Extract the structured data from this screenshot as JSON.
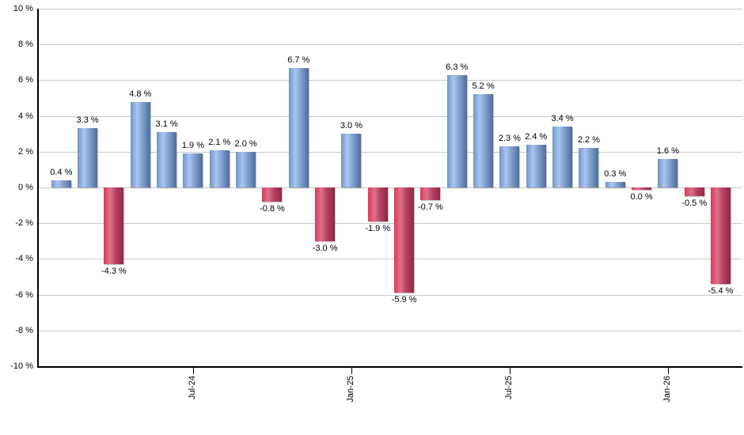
{
  "chart_data": {
    "type": "bar",
    "title": "",
    "xlabel": "",
    "ylabel": "",
    "unit": "%",
    "ylim": [
      -10,
      10
    ],
    "grid": true,
    "values": [
      0.4,
      3.3,
      -4.3,
      4.8,
      3.1,
      1.9,
      2.1,
      2.0,
      -0.8,
      6.7,
      -3.0,
      3.0,
      -1.9,
      -5.9,
      -0.7,
      6.3,
      5.2,
      2.3,
      2.4,
      3.4,
      2.2,
      0.3,
      0.0,
      1.6,
      -0.5,
      -5.4
    ],
    "bar_labels": [
      "0.4 %",
      "3.3 %",
      "-4.3 %",
      "4.8 %",
      "3.1 %",
      "1.9 %",
      "2.1 %",
      "2.0 %",
      "-0.8 %",
      "6.7 %",
      "-3.0 %",
      "3.0 %",
      "-1.9 %",
      "-5.9 %",
      "-0.7 %",
      "6.3 %",
      "5.2 %",
      "2.3 %",
      "2.4 %",
      "3.4 %",
      "2.2 %",
      "0.3 %",
      "0.0 %",
      "1.6 %",
      "-0.5 %",
      "-5.4 %"
    ],
    "x_ticks": [
      {
        "label": "Jul-24",
        "index": 5
      },
      {
        "label": "Jan-25",
        "index": 11
      },
      {
        "label": "Jul-25",
        "index": 17
      },
      {
        "label": "Jan-26",
        "index": 23
      }
    ],
    "y_ticks": [
      {
        "label": "10 %",
        "value": 10
      },
      {
        "label": "8 %",
        "value": 8
      },
      {
        "label": "6 %",
        "value": 6
      },
      {
        "label": "4 %",
        "value": 4
      },
      {
        "label": "2 %",
        "value": 2
      },
      {
        "label": "0 %",
        "value": 0
      },
      {
        "label": "-2 %",
        "value": -2
      },
      {
        "label": "-4 %",
        "value": -4
      },
      {
        "label": "-6 %",
        "value": -6
      },
      {
        "label": "-8 %",
        "value": -8
      },
      {
        "label": "-10 %",
        "value": -10
      }
    ],
    "colors": {
      "positive_gradient": [
        "#6f94c9",
        "#a8c6f0",
        "#7e9dcc",
        "#4e6c9b"
      ],
      "negative_gradient": [
        "#e23459",
        "#dd7389",
        "#b44063",
        "#8d2945"
      ],
      "gridline": "#c9c9c9",
      "axis": "#000000",
      "label_text": "#000000"
    }
  }
}
